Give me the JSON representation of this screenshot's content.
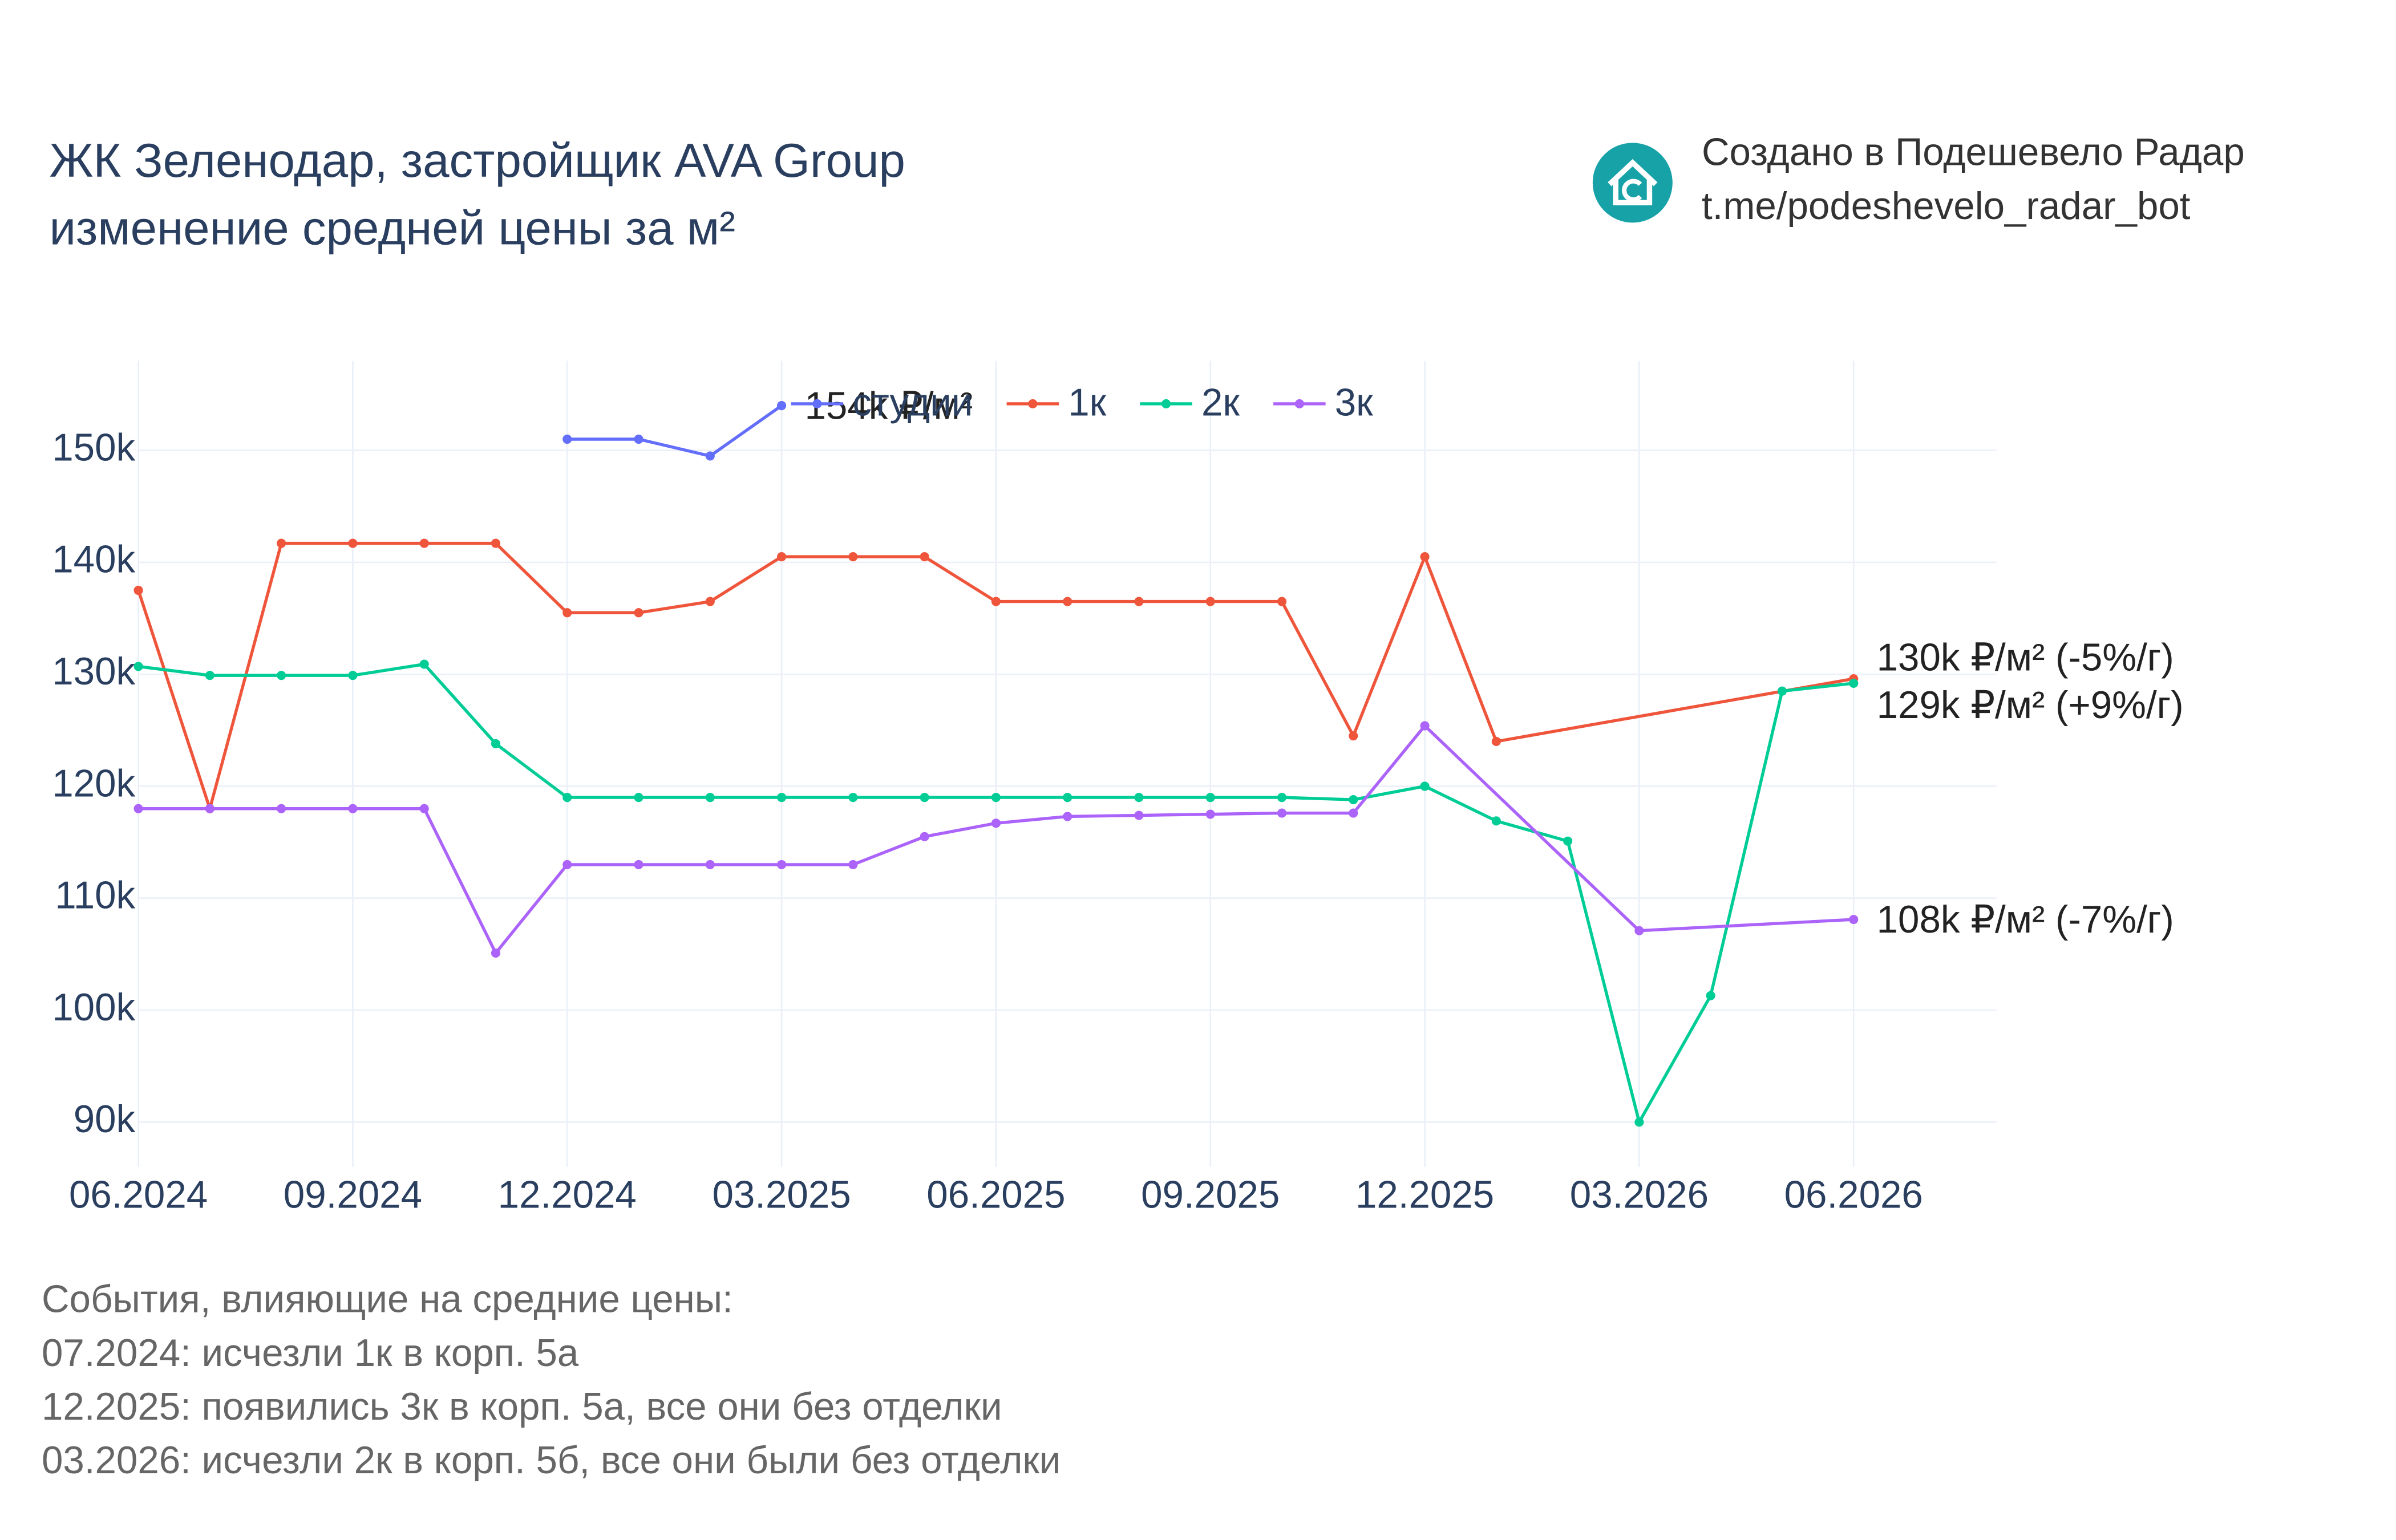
{
  "header": {
    "title": [
      "ЖК Зеленодар, застройщик AVA Group",
      "изменение средней цены за м²"
    ],
    "brand": [
      "Создано в Подешевело Радар",
      "t.me/podeshevelo_radar_bot"
    ]
  },
  "chart_data": {
    "type": "line",
    "xlim": [
      "06.2024",
      "08.2026"
    ],
    "xticks": [
      "06.2024",
      "09.2024",
      "12.2024",
      "03.2025",
      "06.2025",
      "09.2025",
      "12.2025",
      "03.2026",
      "06.2026"
    ],
    "ylim": [
      86,
      158
    ],
    "yticks": [
      {
        "value": 90,
        "label": "90k"
      },
      {
        "value": 100,
        "label": "100k"
      },
      {
        "value": 110,
        "label": "110k"
      },
      {
        "value": 120,
        "label": "120k"
      },
      {
        "value": 130,
        "label": "130k"
      },
      {
        "value": 140,
        "label": "140k"
      },
      {
        "value": 150,
        "label": "150k"
      }
    ],
    "grid": true,
    "series": [
      {
        "name": "студии",
        "color": "#636efa",
        "x": [
          "12.2024",
          "01.2025",
          "02.2025",
          "03.2025"
        ],
        "values": [
          151,
          151,
          149.5,
          154
        ],
        "end_label": "154k ₽/м²"
      },
      {
        "name": "1к",
        "color": "#ef553b",
        "x": [
          "06.2024",
          "07.2024",
          "08.2024",
          "09.2024",
          "10.2024",
          "11.2024",
          "12.2024",
          "01.2025",
          "02.2025",
          "03.2025",
          "04.2025",
          "05.2025",
          "06.2025",
          "07.2025",
          "08.2025",
          "09.2025",
          "10.2025",
          "11.2025",
          "12.2025",
          "01.2026",
          "06.2026"
        ],
        "values": [
          137.5,
          118,
          141.7,
          141.7,
          141.7,
          141.7,
          135.5,
          135.5,
          136.5,
          140.5,
          140.5,
          140.5,
          136.5,
          136.5,
          136.5,
          136.5,
          136.5,
          124.5,
          140.5,
          124,
          129.6
        ],
        "end_label": "130k ₽/м² (-5%/г)"
      },
      {
        "name": "2к",
        "color": "#00cc96",
        "x": [
          "06.2024",
          "07.2024",
          "08.2024",
          "09.2024",
          "10.2024",
          "11.2024",
          "12.2024",
          "01.2025",
          "02.2025",
          "03.2025",
          "04.2025",
          "05.2025",
          "06.2025",
          "07.2025",
          "08.2025",
          "09.2025",
          "10.2025",
          "11.2025",
          "12.2025",
          "01.2026",
          "02.2026",
          "03.2026",
          "04.2026",
          "05.2026",
          "06.2026"
        ],
        "values": [
          130.7,
          129.9,
          129.9,
          129.9,
          130.9,
          123.8,
          119,
          119,
          119,
          119,
          119,
          119,
          119,
          119,
          119,
          119,
          119,
          118.8,
          120,
          116.9,
          115.1,
          90,
          101.3,
          128.5,
          129.2
        ],
        "end_label": "129k ₽/м² (+9%/г)"
      },
      {
        "name": "3к",
        "color": "#ab63fa",
        "x": [
          "06.2024",
          "07.2024",
          "08.2024",
          "09.2024",
          "10.2024",
          "11.2024",
          "12.2024",
          "01.2025",
          "02.2025",
          "03.2025",
          "04.2025",
          "05.2025",
          "06.2025",
          "07.2025",
          "08.2025",
          "09.2025",
          "10.2025",
          "11.2025",
          "12.2025",
          "03.2026",
          "06.2026"
        ],
        "values": [
          118,
          118,
          118,
          118,
          118,
          105.1,
          113,
          113,
          113,
          113,
          113,
          115.5,
          116.7,
          117.3,
          117.4,
          117.5,
          117.6,
          117.6,
          125.4,
          107.1,
          108.1
        ],
        "end_label": "108k ₽/м² (-7%/г)"
      }
    ]
  },
  "notes": [
    "События, влияющие на средние цены:",
    "07.2024: исчезли 1к в корп. 5а",
    "12.2025: появились 3к в корп. 5а, все они без отделки",
    "03.2026: исчезли 2к в корп. 5б, все они были без отделки"
  ]
}
